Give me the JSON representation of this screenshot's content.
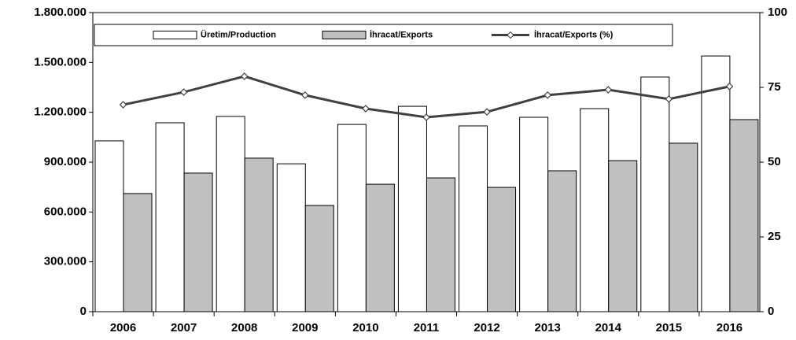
{
  "chart_data": {
    "type": "bar",
    "categories": [
      "2006",
      "2007",
      "2008",
      "2009",
      "2010",
      "2011",
      "2012",
      "2013",
      "2014",
      "2015",
      "2016"
    ],
    "series": [
      {
        "name": "Üretim/Production",
        "type": "bar",
        "color": "#ffffff",
        "values": [
          1028000,
          1137000,
          1175000,
          890000,
          1127000,
          1236000,
          1118000,
          1170000,
          1222000,
          1412000,
          1539000
        ]
      },
      {
        "name": "İhracat/Exports",
        "type": "bar",
        "color": "#c0c0c0",
        "values": [
          711000,
          834000,
          924000,
          639000,
          767000,
          805000,
          748000,
          848000,
          909000,
          1014000,
          1156000
        ]
      },
      {
        "name": "İhracat/Exports (%)",
        "type": "line",
        "axis": "y2",
        "color": "#404040",
        "values": [
          69.2,
          73.4,
          78.7,
          72.4,
          67.9,
          65.0,
          66.8,
          72.4,
          74.2,
          71.1,
          75.3
        ]
      }
    ],
    "ylim": [
      0,
      1800000
    ],
    "yticks": [
      0,
      {
        "value": 300000,
        "label": "300.000"
      },
      {
        "value": 600000,
        "label": "600.000"
      },
      {
        "value": 900000,
        "label": "900.000"
      },
      {
        "value": 1200000,
        "label": "1.200.000"
      },
      {
        "value": 1500000,
        "label": "1.500.000"
      },
      {
        "value": 1800000,
        "label": "1.800.000"
      }
    ],
    "y2lim": [
      0,
      100
    ],
    "y2ticks": [
      0,
      25,
      50,
      75,
      100
    ],
    "legend": "top"
  }
}
